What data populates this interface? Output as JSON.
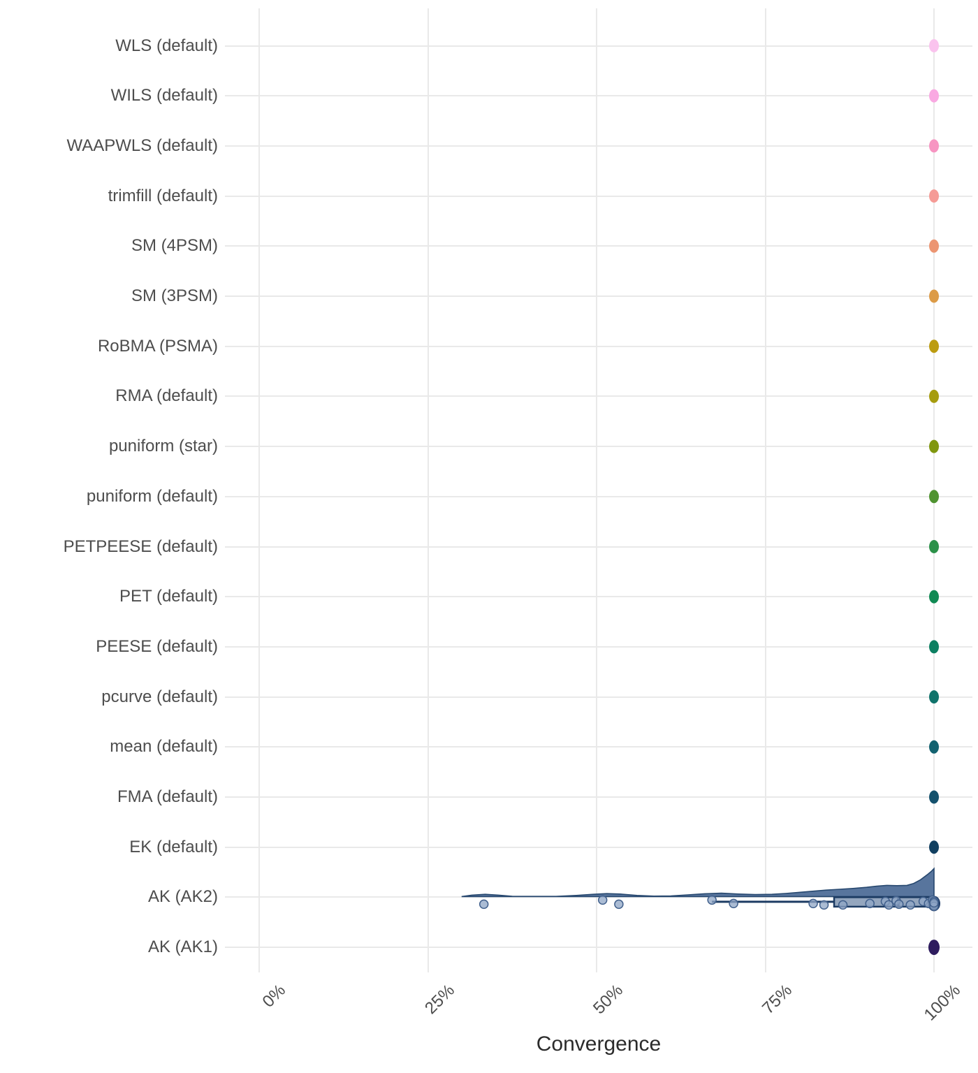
{
  "axes": {
    "x_label": "Convergence",
    "x_ticks": [
      {
        "label": "0%",
        "value": 0
      },
      {
        "label": "25%",
        "value": 25
      },
      {
        "label": "50%",
        "value": 50
      },
      {
        "label": "75%",
        "value": 75
      },
      {
        "label": "100%",
        "value": 100
      }
    ],
    "x_range": [
      0,
      100
    ]
  },
  "chart_data": {
    "type": "raincloud",
    "title": "",
    "xlabel": "Convergence",
    "ylabel": "",
    "x_unit": "percent",
    "xlim": [
      0,
      100
    ],
    "grid": "on",
    "categories_top_to_bottom": [
      "WLS (default)",
      "WILS (default)",
      "WAAPWLS (default)",
      "trimfill (default)",
      "SM (4PSM)",
      "SM (3PSM)",
      "RoBMA (PSMA)",
      "RMA (default)",
      "puniform (star)",
      "puniform (default)",
      "PETPEESE (default)",
      "PET (default)",
      "PEESE (default)",
      "pcurve (default)",
      "mean (default)",
      "FMA (default)",
      "EK (default)",
      "AK (AK2)",
      "AK (AK1)"
    ],
    "series": [
      {
        "label": "WLS (default)",
        "color": "#fac3ee",
        "points": [
          {
            "x": 100,
            "dy": 0
          }
        ]
      },
      {
        "label": "WILS (default)",
        "color": "#f9a9e2",
        "points": [
          {
            "x": 100,
            "dy": 0
          }
        ]
      },
      {
        "label": "WAAPWLS (default)",
        "color": "#f795c2",
        "points": [
          {
            "x": 100,
            "dy": 0
          }
        ]
      },
      {
        "label": "trimfill (default)",
        "color": "#f59b96",
        "points": [
          {
            "x": 100,
            "dy": 0
          }
        ]
      },
      {
        "label": "SM (4PSM)",
        "color": "#ec9572",
        "points": [
          {
            "x": 100,
            "dy": 0
          }
        ]
      },
      {
        "label": "SM (3PSM)",
        "color": "#dc9b47",
        "points": [
          {
            "x": 100,
            "dy": 0
          }
        ]
      },
      {
        "label": "RoBMA (PSMA)",
        "color": "#bc9c10",
        "points": [
          {
            "x": 100,
            "dy": 0
          }
        ]
      },
      {
        "label": "RMA (default)",
        "color": "#a69c0e",
        "points": [
          {
            "x": 100,
            "dy": 0
          }
        ]
      },
      {
        "label": "puniform (star)",
        "color": "#80970f",
        "points": [
          {
            "x": 100,
            "dy": 0
          }
        ]
      },
      {
        "label": "puniform (default)",
        "color": "#4f9330",
        "points": [
          {
            "x": 100,
            "dy": 0
          }
        ]
      },
      {
        "label": "PETPEESE (default)",
        "color": "#2b9149",
        "points": [
          {
            "x": 100,
            "dy": 0
          }
        ]
      },
      {
        "label": "PET (default)",
        "color": "#108a53",
        "points": [
          {
            "x": 100,
            "dy": 0
          }
        ]
      },
      {
        "label": "PEESE (default)",
        "color": "#0d8062",
        "points": [
          {
            "x": 100,
            "dy": 0
          }
        ]
      },
      {
        "label": "pcurve (default)",
        "color": "#10736b",
        "points": [
          {
            "x": 100,
            "dy": 0
          }
        ]
      },
      {
        "label": "mean (default)",
        "color": "#136270",
        "points": [
          {
            "x": 100,
            "dy": 0
          }
        ]
      },
      {
        "label": "FMA (default)",
        "color": "#14516d",
        "points": [
          {
            "x": 100,
            "dy": 0
          }
        ]
      },
      {
        "label": "EK (default)",
        "color": "#113f60",
        "points": [
          {
            "x": 100,
            "dy": 0
          }
        ]
      },
      {
        "label": "AK (AK2)",
        "color": "#39587f",
        "points": [
          {
            "x": 33.3,
            "dy": 10
          },
          {
            "x": 50.9,
            "dy": 4
          },
          {
            "x": 53.3,
            "dy": 10
          },
          {
            "x": 67.1,
            "dy": 4
          },
          {
            "x": 70.3,
            "dy": 9
          },
          {
            "x": 82.1,
            "dy": 9
          },
          {
            "x": 83.7,
            "dy": 11
          },
          {
            "x": 86.5,
            "dy": 11
          },
          {
            "x": 90.5,
            "dy": 9
          },
          {
            "x": 92.8,
            "dy": 6
          },
          {
            "x": 93.3,
            "dy": 11
          },
          {
            "x": 94.4,
            "dy": 5
          },
          {
            "x": 94.8,
            "dy": 10
          },
          {
            "x": 96.5,
            "dy": 11
          },
          {
            "x": 98.4,
            "dy": 6
          },
          {
            "x": 99.2,
            "dy": 9
          },
          {
            "x": 99.8,
            "dy": 4
          },
          {
            "x": 100,
            "dy": 6
          },
          {
            "x": 100,
            "dy": 10
          },
          {
            "x": 100,
            "dy": 13
          },
          {
            "x": 100,
            "dy": 8
          }
        ],
        "box": {
          "whisker_low": 67.1,
          "q1": 85.2,
          "median": 94.7,
          "q3": 100,
          "whisker_high": 100
        },
        "density_norm": [
          [
            30,
            0
          ],
          [
            31.5,
            0.05
          ],
          [
            33.5,
            0.08
          ],
          [
            35.5,
            0.05
          ],
          [
            37.5,
            0.01
          ],
          [
            40,
            0.005
          ],
          [
            44,
            0.005
          ],
          [
            47,
            0.04
          ],
          [
            49.5,
            0.08
          ],
          [
            51.5,
            0.105
          ],
          [
            53.5,
            0.09
          ],
          [
            56,
            0.04
          ],
          [
            58.5,
            0.015
          ],
          [
            61,
            0.02
          ],
          [
            63.5,
            0.06
          ],
          [
            66,
            0.1
          ],
          [
            68.5,
            0.12
          ],
          [
            71,
            0.09
          ],
          [
            73.5,
            0.07
          ],
          [
            76,
            0.08
          ],
          [
            78,
            0.11
          ],
          [
            80,
            0.15
          ],
          [
            82,
            0.19
          ],
          [
            84,
            0.23
          ],
          [
            86,
            0.26
          ],
          [
            88,
            0.29
          ],
          [
            90,
            0.33
          ],
          [
            91.5,
            0.37
          ],
          [
            93,
            0.4
          ],
          [
            94.5,
            0.39
          ],
          [
            96,
            0.4
          ],
          [
            97,
            0.47
          ],
          [
            98,
            0.6
          ],
          [
            99,
            0.78
          ],
          [
            99.6,
            0.9
          ],
          [
            100,
            1
          ]
        ],
        "style": {
          "density_fill": "#4f6e98",
          "density_stroke": "#27486f",
          "box_fill": "#3c5c88",
          "box_stroke": "#1c3b63",
          "point_fill": "#8fa6c6",
          "point_stroke": "#41608c",
          "cluster_fill": "#23406b"
        }
      },
      {
        "label": "AK (AK1)",
        "color": "#2e1c5e",
        "points": [
          {
            "x": 100,
            "dy": 0
          }
        ]
      }
    ]
  }
}
